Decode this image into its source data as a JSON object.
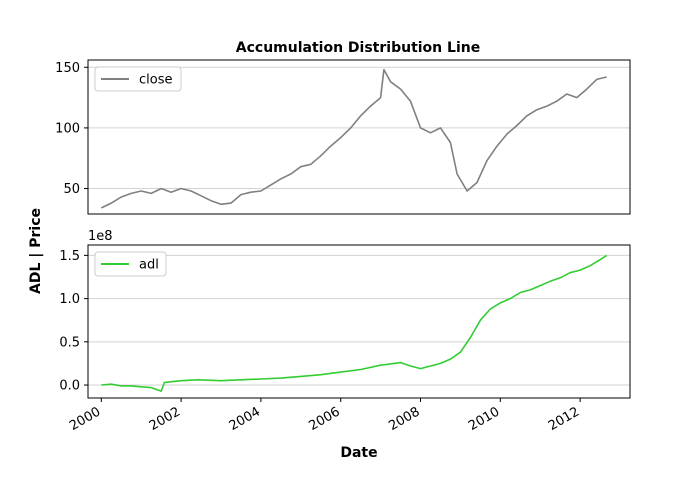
{
  "chart_data": {
    "type": "line",
    "title": "Accumulation Distribution Line",
    "xlabel": "Date",
    "ylabel": "ADL | Price",
    "x_ticks": [
      "2000",
      "2002",
      "2004",
      "2006",
      "2008",
      "2010",
      "2012"
    ],
    "xlim": [
      "1999-09",
      "2013-04"
    ],
    "panels": [
      {
        "name": "price",
        "ylim": [
          29,
          156
        ],
        "y_ticks": [
          50,
          100,
          150
        ],
        "grid": "y",
        "legend": {
          "location": "upper left"
        },
        "series": [
          {
            "name": "close",
            "color": "#808080",
            "x": [
              "2000-01",
              "2000-04",
              "2000-07",
              "2000-10",
              "2001-01",
              "2001-04",
              "2001-07",
              "2001-10",
              "2002-01",
              "2002-04",
              "2002-07",
              "2002-10",
              "2003-01",
              "2003-04",
              "2003-07",
              "2003-10",
              "2004-01",
              "2004-04",
              "2004-07",
              "2004-10",
              "2005-01",
              "2005-04",
              "2005-07",
              "2005-10",
              "2006-01",
              "2006-04",
              "2006-07",
              "2006-10",
              "2007-01",
              "2007-02",
              "2007-04",
              "2007-07",
              "2007-10",
              "2008-01",
              "2008-04",
              "2008-07",
              "2008-10",
              "2008-12",
              "2009-03",
              "2009-06",
              "2009-09",
              "2009-12",
              "2010-03",
              "2010-06",
              "2010-09",
              "2010-12",
              "2011-03",
              "2011-06",
              "2011-09",
              "2011-12",
              "2012-03",
              "2012-06",
              "2012-09"
            ],
            "values": [
              34,
              38,
              43,
              46,
              48,
              46,
              50,
              47,
              50,
              48,
              44,
              40,
              37,
              38,
              45,
              47,
              48,
              53,
              58,
              62,
              68,
              70,
              77,
              85,
              92,
              100,
              110,
              118,
              125,
              148,
              138,
              132,
              122,
              100,
              96,
              100,
              88,
              62,
              48,
              55,
              73,
              85,
              95,
              102,
              110,
              115,
              118,
              122,
              128,
              125,
              132,
              140,
              142
            ]
          }
        ]
      },
      {
        "name": "adl",
        "ylim": [
          -0.15,
          1.62
        ],
        "y_ticks": [
          0.0,
          0.5,
          1.0,
          1.5
        ],
        "y_tick_labels": [
          "0.0",
          "0.5",
          "1.0",
          "1.5"
        ],
        "offset_label": "1e8",
        "grid": "y",
        "legend": {
          "location": "upper left"
        },
        "series": [
          {
            "name": "adl",
            "color": "#33cc33",
            "x": [
              "2000-01",
              "2000-04",
              "2000-07",
              "2000-10",
              "2001-01",
              "2001-04",
              "2001-07",
              "2001-08",
              "2002-01",
              "2002-06",
              "2003-01",
              "2003-07",
              "2004-01",
              "2004-07",
              "2005-01",
              "2005-07",
              "2006-01",
              "2006-07",
              "2007-01",
              "2007-07",
              "2007-10",
              "2008-01",
              "2008-04",
              "2008-07",
              "2008-10",
              "2009-01",
              "2009-04",
              "2009-07",
              "2009-10",
              "2010-01",
              "2010-04",
              "2010-07",
              "2010-10",
              "2011-01",
              "2011-04",
              "2011-07",
              "2011-10",
              "2012-01",
              "2012-04",
              "2012-07",
              "2012-09"
            ],
            "values": [
              0.0,
              0.01,
              -0.01,
              -0.01,
              -0.02,
              -0.03,
              -0.07,
              0.03,
              0.05,
              0.06,
              0.05,
              0.06,
              0.07,
              0.08,
              0.1,
              0.12,
              0.15,
              0.18,
              0.23,
              0.26,
              0.22,
              0.19,
              0.22,
              0.25,
              0.3,
              0.38,
              0.55,
              0.75,
              0.88,
              0.95,
              1.0,
              1.07,
              1.1,
              1.15,
              1.2,
              1.24,
              1.3,
              1.33,
              1.38,
              1.45,
              1.5
            ]
          }
        ]
      }
    ]
  }
}
